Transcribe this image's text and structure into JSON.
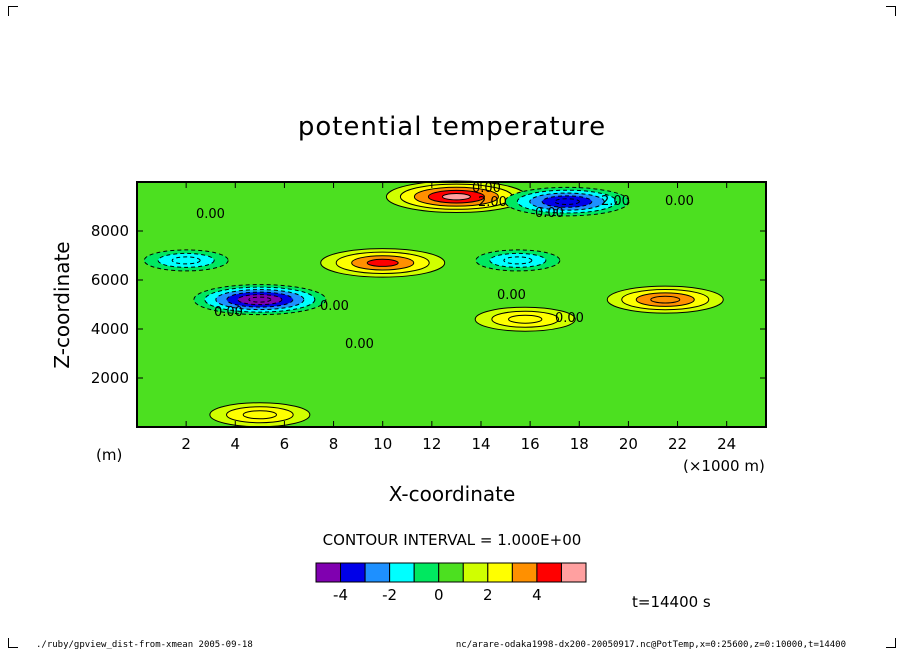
{
  "chart_data": {
    "type": "heatmap",
    "title": "potential temperature",
    "xlabel": "X-coordinate",
    "ylabel": "Z-coordinate",
    "x_unit_label": "(×1000 m)",
    "y_unit_label": "(m)",
    "xlim": [
      0,
      25.6
    ],
    "ylim": [
      0,
      10000
    ],
    "x_ticks": [
      "2",
      "4",
      "6",
      "8",
      "10",
      "12",
      "14",
      "16",
      "18",
      "20",
      "22",
      "24"
    ],
    "y_ticks": [
      "2000",
      "4000",
      "6000",
      "8000"
    ],
    "contour_interval_label": "CONTOUR INTERVAL = 1.000E+00",
    "contour_labels": [
      "0.00",
      "2.00"
    ],
    "colorbar": {
      "colors": [
        "#8000b0",
        "#0000e8",
        "#1e90ff",
        "#00ffff",
        "#00e860",
        "#4ce020",
        "#d0ff00",
        "#ffff00",
        "#ff9000",
        "#ff0000",
        "#ffa0a0"
      ],
      "tick_labels": [
        "-4",
        "-2",
        "0",
        "2",
        "4"
      ],
      "tick_values": [
        -4,
        -2,
        0,
        2,
        4
      ],
      "range": [
        -5,
        6
      ]
    },
    "features": [
      {
        "x": 13.0,
        "z": 9400,
        "value": 4.5
      },
      {
        "x": 17.5,
        "z": 9200,
        "value": -3.5
      },
      {
        "x": 10.0,
        "z": 6700,
        "value": 3.5
      },
      {
        "x": 5.0,
        "z": 5200,
        "value": -4.0
      },
      {
        "x": 21.5,
        "z": 5200,
        "value": 3.0
      },
      {
        "x": 15.8,
        "z": 4400,
        "value": 2.0
      },
      {
        "x": 5.0,
        "z": 500,
        "value": 2.0
      },
      {
        "x": 2.0,
        "z": 6800,
        "value": -1.0
      },
      {
        "x": 15.5,
        "z": 6800,
        "value": -1.0
      }
    ],
    "time_label": "t=14400 s"
  },
  "footer": {
    "left": "./ruby/gpview_dist-from-xmean  2005-09-18",
    "right": "nc/arare-odaka1998-dx200-20050917.nc@PotTemp,x=0:25600,z=0:10000,t=14400"
  }
}
